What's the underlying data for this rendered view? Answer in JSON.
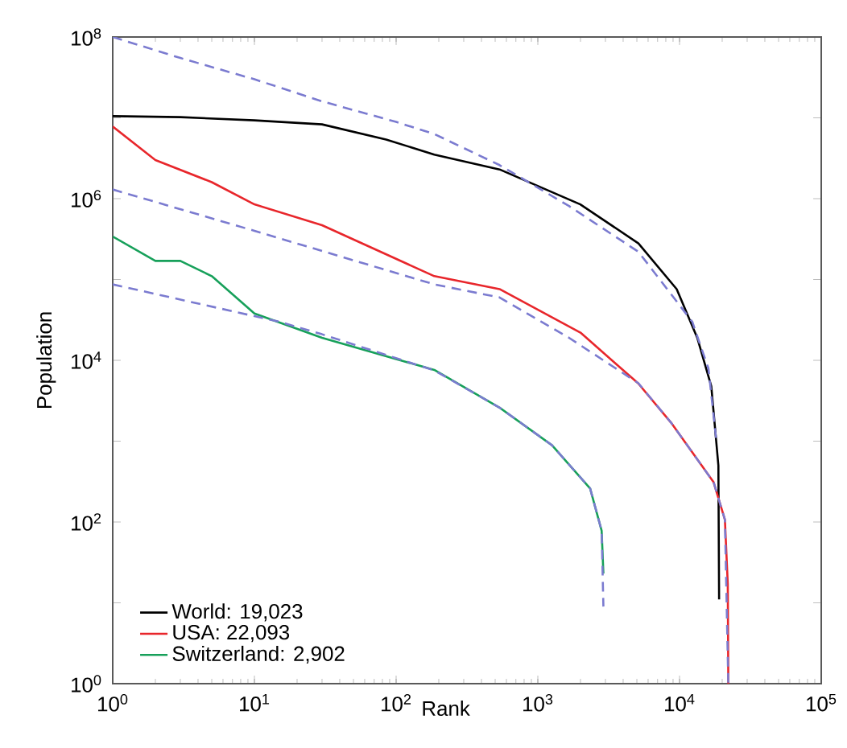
{
  "chart_data": {
    "type": "line",
    "xlabel": "Rank",
    "ylabel": "Population",
    "log": "xy",
    "legend": "bottom left",
    "grid": false,
    "marker": "none",
    "xlim": [
      1,
      100000
    ],
    "ylim": [
      1,
      100000000
    ],
    "xticks": [
      {
        "value": 1,
        "label": "10$^{0}$"
      },
      {
        "value": 10,
        "label": "10$^{1}$"
      },
      {
        "value": 100,
        "label": "10$^{2}$"
      },
      {
        "value": 1000,
        "label": "10$^{3}$"
      },
      {
        "value": 10000,
        "label": "10$^{4}$"
      },
      {
        "value": 100000,
        "label": "10$^{5}$"
      }
    ],
    "yticks": [
      {
        "value": 1,
        "label": "10$^{0}$"
      },
      {
        "value": 10,
        "label": null
      },
      {
        "value": 100,
        "label": "10$^{2}$"
      },
      {
        "value": 1000,
        "label": null
      },
      {
        "value": 10000,
        "label": "10$^{4}$"
      },
      {
        "value": 100000,
        "label": null
      },
      {
        "value": 1000000,
        "label": "10$^{6}$"
      },
      {
        "value": 10000000,
        "label": null
      },
      {
        "value": 100000000,
        "label": "10$^{8}$"
      }
    ],
    "series": [
      {
        "type": "line",
        "line_style": "dashed",
        "color": "#7b7bd0",
        "x": [
          1,
          3,
          10,
          30,
          100,
          186,
          537,
          1660,
          5129,
          12300,
          16000,
          18200
        ],
        "values": [
          100000000,
          55000000,
          30000000,
          16000000,
          8900000,
          6300000,
          2600000,
          810000,
          220000,
          30000,
          7900,
          1000
        ]
      },
      {
        "type": "line",
        "line_style": "dashed",
        "color": "#7b7bd0",
        "x": [
          1,
          10,
          186,
          537,
          1660,
          5129,
          8700,
          17400,
          20900,
          22093
        ],
        "values": [
          1300000,
          400000,
          87000,
          60000,
          19000,
          5200,
          1700,
          310,
          107,
          1
        ]
      },
      {
        "type": "line",
        "line_style": "dashed",
        "color": "#7b7bd0",
        "x": [
          1,
          15,
          30,
          186,
          537,
          1260,
          2340,
          2820,
          2902
        ],
        "values": [
          87000,
          30000,
          21000,
          7500,
          2600,
          890,
          260,
          78,
          9
        ]
      },
      {
        "name": "World:   19,023",
        "color": "#000000",
        "x": [
          1,
          3,
          10,
          30,
          85,
          186,
          537,
          1995,
          5129,
          9550,
          13335,
          16750,
          18800,
          19023
        ],
        "values": [
          10500000,
          10200000,
          9300000,
          8300000,
          5400000,
          3500000,
          2300000,
          850000,
          280000,
          76000,
          19000,
          4800,
          500,
          11
        ]
      },
      {
        "name": "USA:   22,093",
        "color": "#e8262b",
        "x": [
          1,
          2,
          5,
          10,
          30,
          186,
          537,
          2000,
          5100,
          8700,
          17400,
          20900,
          21900,
          22093
        ],
        "values": [
          7800000,
          3000000,
          1600000,
          850000,
          470000,
          110000,
          76000,
          22000,
          5200,
          1700,
          310,
          107,
          17,
          1
        ]
      },
      {
        "name": "Switzerland:   2,902",
        "color": "#17a05a",
        "x": [
          1,
          2,
          3,
          5,
          10,
          30,
          186,
          537,
          1260,
          2340,
          2820,
          2902
        ],
        "values": [
          340000,
          170000,
          170000,
          110000,
          38000,
          19000,
          7600,
          2600,
          890,
          260,
          78,
          23
        ]
      }
    ]
  }
}
